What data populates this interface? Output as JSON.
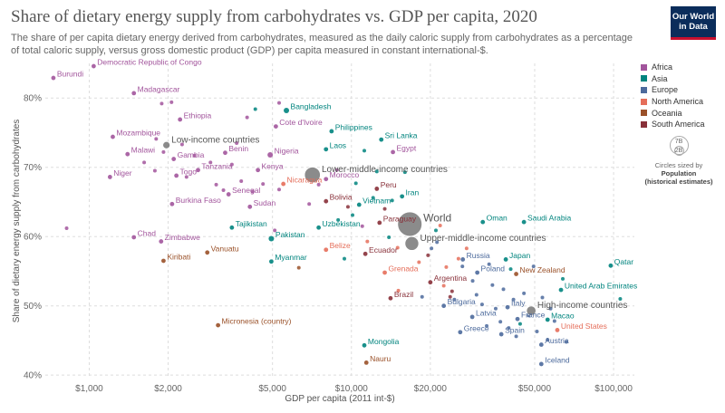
{
  "header": {
    "title": "Share of dietary energy supply from carbohydrates vs. GDP per capita, 2020",
    "subtitle": "The share of per capita dietary energy derived from carbohydrates, measured as the daily caloric supply from carbohydrates as a percentage of total caloric supply, versus gross domestic product (GDP) per capita measured in constant international-$.",
    "logo_line1": "Our World",
    "logo_line2": "in Data"
  },
  "legend": {
    "items": [
      {
        "label": "Africa",
        "color": "#a2559c"
      },
      {
        "label": "Asia",
        "color": "#00847e"
      },
      {
        "label": "Europe",
        "color": "#4c6a9c"
      },
      {
        "label": "North America",
        "color": "#e56e5a"
      },
      {
        "label": "Oceania",
        "color": "#9a5129"
      },
      {
        "label": "South America",
        "color": "#883039"
      }
    ],
    "size_note_1": "Circles sized by",
    "size_note_2": "Population",
    "size_note_3": "(historical estimates)",
    "size_big": "7B",
    "size_small": "2B"
  },
  "chart_data": {
    "type": "scatter",
    "title": "Share of dietary energy supply from carbohydrates vs. GDP per capita, 2020",
    "xlabel": "GDP per capita (2011 int-$)",
    "ylabel": "Share of dietary energy supply from carbohydrates",
    "x_scale": "log",
    "xlim": [
      680,
      120000
    ],
    "ylim": [
      39.5,
      85
    ],
    "x_ticks": [
      1000,
      2000,
      5000,
      10000,
      20000,
      50000,
      100000
    ],
    "x_tick_labels": [
      "$1,000",
      "$2,000",
      "$5,000",
      "$10,000",
      "$20,000",
      "$50,000",
      "$100,000"
    ],
    "y_ticks": [
      40,
      50,
      60,
      70,
      80
    ],
    "y_tick_labels": [
      "40%",
      "50%",
      "60%",
      "70%",
      "80%"
    ],
    "grid": true,
    "legend_position": "right",
    "labeled_points": [
      {
        "label": "Burundi",
        "x": 730,
        "y": 82.9,
        "region": "Africa"
      },
      {
        "label": "Democratic Republic of Congo",
        "x": 1040,
        "y": 84.6,
        "region": "Africa"
      },
      {
        "label": "Madagascar",
        "x": 1480,
        "y": 80.7,
        "region": "Africa"
      },
      {
        "label": "Ethiopia",
        "x": 2220,
        "y": 76.9,
        "region": "Africa"
      },
      {
        "label": "Bangladesh",
        "x": 5650,
        "y": 78.2,
        "region": "Asia"
      },
      {
        "label": "Cote d'Ivoire",
        "x": 5150,
        "y": 75.9,
        "region": "Africa"
      },
      {
        "label": "Mozambique",
        "x": 1230,
        "y": 74.4,
        "region": "Africa"
      },
      {
        "label": "Philippines",
        "x": 8400,
        "y": 75.2,
        "region": "Asia"
      },
      {
        "label": "Sri Lanka",
        "x": 13000,
        "y": 74.0,
        "region": "Asia"
      },
      {
        "label": "Low-income countries",
        "x": 1970,
        "y": 73.2,
        "region": "Aggregate",
        "population_b": 0.7
      },
      {
        "label": "Malawi",
        "x": 1400,
        "y": 71.9,
        "region": "Africa"
      },
      {
        "label": "Benin",
        "x": 3300,
        "y": 72.1,
        "region": "Africa"
      },
      {
        "label": "Nigeria",
        "x": 4900,
        "y": 71.8,
        "region": "Africa"
      },
      {
        "label": "Laos",
        "x": 8000,
        "y": 72.6,
        "region": "Asia"
      },
      {
        "label": "Egypt",
        "x": 14400,
        "y": 72.2,
        "region": "Africa"
      },
      {
        "label": "Gambia",
        "x": 2100,
        "y": 71.2,
        "region": "Africa"
      },
      {
        "label": "Tanzania",
        "x": 2600,
        "y": 69.6,
        "region": "Africa"
      },
      {
        "label": "Kenya",
        "x": 4400,
        "y": 69.6,
        "region": "Africa"
      },
      {
        "label": "Lower-middle-income countries",
        "x": 7100,
        "y": 68.9,
        "region": "Aggregate",
        "population_b": 3.3
      },
      {
        "label": "Niger",
        "x": 1200,
        "y": 68.6,
        "region": "Africa"
      },
      {
        "label": "Togo",
        "x": 2150,
        "y": 68.8,
        "region": "Africa"
      },
      {
        "label": "Nicaragua",
        "x": 5500,
        "y": 67.6,
        "region": "North America"
      },
      {
        "label": "Morocco",
        "x": 8000,
        "y": 68.3,
        "region": "Africa"
      },
      {
        "label": "Peru",
        "x": 12500,
        "y": 66.9,
        "region": "South America"
      },
      {
        "label": "Senegal",
        "x": 3400,
        "y": 66.1,
        "region": "Africa"
      },
      {
        "label": "Iran",
        "x": 15600,
        "y": 65.8,
        "region": "Asia"
      },
      {
        "label": "Bolivia",
        "x": 8000,
        "y": 65.1,
        "region": "South America"
      },
      {
        "label": "Burkina Faso",
        "x": 2070,
        "y": 64.7,
        "region": "Africa"
      },
      {
        "label": "Sudan",
        "x": 4100,
        "y": 64.3,
        "region": "Africa"
      },
      {
        "label": "Vietnam",
        "x": 10700,
        "y": 64.6,
        "region": "Asia"
      },
      {
        "label": "World",
        "x": 16700,
        "y": 61.8,
        "region": "Aggregate",
        "population_b": 7.8
      },
      {
        "label": "Tajikistan",
        "x": 3500,
        "y": 61.3,
        "region": "Asia"
      },
      {
        "label": "Uzbekistan",
        "x": 7500,
        "y": 61.3,
        "region": "Asia"
      },
      {
        "label": "Paraguay",
        "x": 12800,
        "y": 62.0,
        "region": "South America"
      },
      {
        "label": "Oman",
        "x": 31700,
        "y": 62.1,
        "region": "Asia"
      },
      {
        "label": "Saudi Arabia",
        "x": 45500,
        "y": 62.1,
        "region": "Asia"
      },
      {
        "label": "Chad",
        "x": 1480,
        "y": 59.9,
        "region": "Africa"
      },
      {
        "label": "Pakistan",
        "x": 4950,
        "y": 59.7,
        "region": "Asia"
      },
      {
        "label": "Upper-middle-income countries",
        "x": 17000,
        "y": 59.0,
        "region": "Aggregate",
        "population_b": 2.5
      },
      {
        "label": "Zimbabwe",
        "x": 1880,
        "y": 59.3,
        "region": "Africa"
      },
      {
        "label": "Vanuatu",
        "x": 2820,
        "y": 57.7,
        "region": "Oceania"
      },
      {
        "label": "Belize",
        "x": 8000,
        "y": 58.1,
        "region": "North America"
      },
      {
        "label": "Ecuador",
        "x": 11300,
        "y": 57.5,
        "region": "South America"
      },
      {
        "label": "Kiribati",
        "x": 1920,
        "y": 56.5,
        "region": "Oceania"
      },
      {
        "label": "Myanmar",
        "x": 4950,
        "y": 56.4,
        "region": "Asia"
      },
      {
        "label": "Russia",
        "x": 26600,
        "y": 56.7,
        "region": "Europe"
      },
      {
        "label": "Japan",
        "x": 38800,
        "y": 56.7,
        "region": "Asia"
      },
      {
        "label": "Qatar",
        "x": 97500,
        "y": 55.8,
        "region": "Asia"
      },
      {
        "label": "Poland",
        "x": 30200,
        "y": 54.8,
        "region": "Europe"
      },
      {
        "label": "New Zealand",
        "x": 42500,
        "y": 54.6,
        "region": "Oceania"
      },
      {
        "label": "Grenada",
        "x": 13400,
        "y": 54.8,
        "region": "North America"
      },
      {
        "label": "Argentina",
        "x": 20000,
        "y": 53.4,
        "region": "South America"
      },
      {
        "label": "United Arab Emirates",
        "x": 63000,
        "y": 52.3,
        "region": "Asia"
      },
      {
        "label": "Brazil",
        "x": 14100,
        "y": 51.1,
        "region": "South America"
      },
      {
        "label": "Bulgaria",
        "x": 22500,
        "y": 50.0,
        "region": "Europe"
      },
      {
        "label": "High-income countries",
        "x": 48500,
        "y": 49.3,
        "region": "Aggregate",
        "population_b": 1.2
      },
      {
        "label": "Italy",
        "x": 39400,
        "y": 49.8,
        "region": "Europe"
      },
      {
        "label": "Latvia",
        "x": 28900,
        "y": 48.4,
        "region": "Europe"
      },
      {
        "label": "France",
        "x": 43000,
        "y": 48.1,
        "region": "Europe"
      },
      {
        "label": "Macao",
        "x": 56000,
        "y": 48.0,
        "region": "Asia"
      },
      {
        "label": "Micronesia (country)",
        "x": 3100,
        "y": 47.2,
        "region": "Oceania"
      },
      {
        "label": "United States",
        "x": 61000,
        "y": 46.5,
        "region": "North America"
      },
      {
        "label": "Greece",
        "x": 26000,
        "y": 46.2,
        "region": "Europe"
      },
      {
        "label": "Spain",
        "x": 37300,
        "y": 45.9,
        "region": "Europe"
      },
      {
        "label": "Mongolia",
        "x": 11200,
        "y": 44.3,
        "region": "Asia"
      },
      {
        "label": "Austria",
        "x": 53000,
        "y": 44.4,
        "region": "Europe"
      },
      {
        "label": "Nauru",
        "x": 11400,
        "y": 41.8,
        "region": "Oceania"
      },
      {
        "label": "Iceland",
        "x": 53000,
        "y": 41.6,
        "region": "Europe"
      }
    ],
    "unlabeled_points": [
      {
        "x": 820,
        "y": 61.2,
        "region": "Africa"
      },
      {
        "x": 1620,
        "y": 70.7,
        "region": "Africa"
      },
      {
        "x": 1780,
        "y": 69.5,
        "region": "Africa"
      },
      {
        "x": 1800,
        "y": 74.1,
        "region": "Africa"
      },
      {
        "x": 1890,
        "y": 79.2,
        "region": "Africa"
      },
      {
        "x": 2060,
        "y": 79.4,
        "region": "Africa"
      },
      {
        "x": 1920,
        "y": 72.2,
        "region": "Africa"
      },
      {
        "x": 2260,
        "y": 73.3,
        "region": "Africa"
      },
      {
        "x": 2350,
        "y": 68.6,
        "region": "Africa"
      },
      {
        "x": 2520,
        "y": 71.7,
        "region": "Africa"
      },
      {
        "x": 2900,
        "y": 70.7,
        "region": "Africa"
      },
      {
        "x": 3050,
        "y": 67.5,
        "region": "Africa"
      },
      {
        "x": 3250,
        "y": 66.7,
        "region": "Africa"
      },
      {
        "x": 3500,
        "y": 70.4,
        "region": "Africa"
      },
      {
        "x": 3650,
        "y": 73.5,
        "region": "Africa"
      },
      {
        "x": 4000,
        "y": 77.2,
        "region": "Africa"
      },
      {
        "x": 4300,
        "y": 78.4,
        "region": "Asia"
      },
      {
        "x": 3800,
        "y": 68.0,
        "region": "Africa"
      },
      {
        "x": 4200,
        "y": 66.5,
        "region": "Africa"
      },
      {
        "x": 4600,
        "y": 67.6,
        "region": "Africa"
      },
      {
        "x": 5300,
        "y": 79.3,
        "region": "Africa"
      },
      {
        "x": 5300,
        "y": 66.8,
        "region": "Africa"
      },
      {
        "x": 5100,
        "y": 60.9,
        "region": "Africa"
      },
      {
        "x": 6300,
        "y": 55.5,
        "region": "Oceania"
      },
      {
        "x": 6900,
        "y": 64.7,
        "region": "Africa"
      },
      {
        "x": 7500,
        "y": 67.5,
        "region": "Africa"
      },
      {
        "x": 8800,
        "y": 69.6,
        "region": "Africa"
      },
      {
        "x": 8900,
        "y": 62.4,
        "region": "Asia"
      },
      {
        "x": 9400,
        "y": 56.8,
        "region": "Asia"
      },
      {
        "x": 9700,
        "y": 64.3,
        "region": "South America"
      },
      {
        "x": 10100,
        "y": 63.1,
        "region": "Asia"
      },
      {
        "x": 10400,
        "y": 67.7,
        "region": "Asia"
      },
      {
        "x": 11000,
        "y": 61.5,
        "region": "Africa"
      },
      {
        "x": 11200,
        "y": 72.4,
        "region": "Asia"
      },
      {
        "x": 11500,
        "y": 59.3,
        "region": "North America"
      },
      {
        "x": 12100,
        "y": 65.6,
        "region": "Asia"
      },
      {
        "x": 12500,
        "y": 69.4,
        "region": "Asia"
      },
      {
        "x": 13400,
        "y": 64.0,
        "region": "South America"
      },
      {
        "x": 13900,
        "y": 59.9,
        "region": "Asia"
      },
      {
        "x": 14300,
        "y": 65.2,
        "region": "Asia"
      },
      {
        "x": 15000,
        "y": 58.4,
        "region": "North America"
      },
      {
        "x": 15100,
        "y": 52.2,
        "region": "North America"
      },
      {
        "x": 16000,
        "y": 69.3,
        "region": "Asia"
      },
      {
        "x": 18100,
        "y": 56.3,
        "region": "North America"
      },
      {
        "x": 18600,
        "y": 51.3,
        "region": "Europe"
      },
      {
        "x": 19600,
        "y": 57.3,
        "region": "South America"
      },
      {
        "x": 20200,
        "y": 58.3,
        "region": "Europe"
      },
      {
        "x": 21000,
        "y": 60.9,
        "region": "Asia"
      },
      {
        "x": 21200,
        "y": 59.2,
        "region": "Europe"
      },
      {
        "x": 21800,
        "y": 61.6,
        "region": "North America"
      },
      {
        "x": 22500,
        "y": 52.9,
        "region": "North America"
      },
      {
        "x": 23000,
        "y": 55.6,
        "region": "North America"
      },
      {
        "x": 23800,
        "y": 51.3,
        "region": "South America"
      },
      {
        "x": 24200,
        "y": 52.1,
        "region": "South America"
      },
      {
        "x": 24700,
        "y": 50.9,
        "region": "Europe"
      },
      {
        "x": 25600,
        "y": 56.8,
        "region": "North America"
      },
      {
        "x": 26500,
        "y": 55.7,
        "region": "Europe"
      },
      {
        "x": 27500,
        "y": 58.3,
        "region": "North America"
      },
      {
        "x": 29000,
        "y": 53.6,
        "region": "Europe"
      },
      {
        "x": 30000,
        "y": 51.6,
        "region": "Europe"
      },
      {
        "x": 31500,
        "y": 50.2,
        "region": "Europe"
      },
      {
        "x": 32800,
        "y": 47.1,
        "region": "Europe"
      },
      {
        "x": 33500,
        "y": 56.0,
        "region": "Europe"
      },
      {
        "x": 34500,
        "y": 53.0,
        "region": "Europe"
      },
      {
        "x": 35500,
        "y": 49.6,
        "region": "Europe"
      },
      {
        "x": 37000,
        "y": 47.7,
        "region": "Europe"
      },
      {
        "x": 38000,
        "y": 52.4,
        "region": "Europe"
      },
      {
        "x": 39800,
        "y": 46.8,
        "region": "Europe"
      },
      {
        "x": 40500,
        "y": 55.3,
        "region": "Asia"
      },
      {
        "x": 41500,
        "y": 50.9,
        "region": "Europe"
      },
      {
        "x": 42500,
        "y": 45.6,
        "region": "Europe"
      },
      {
        "x": 44000,
        "y": 47.4,
        "region": "Asia"
      },
      {
        "x": 45500,
        "y": 51.8,
        "region": "Europe"
      },
      {
        "x": 47500,
        "y": 48.6,
        "region": "Europe"
      },
      {
        "x": 49500,
        "y": 55.7,
        "region": "Europe"
      },
      {
        "x": 51000,
        "y": 46.3,
        "region": "Europe"
      },
      {
        "x": 53500,
        "y": 51.2,
        "region": "Europe"
      },
      {
        "x": 56000,
        "y": 45.1,
        "region": "Europe"
      },
      {
        "x": 57500,
        "y": 49.6,
        "region": "Europe"
      },
      {
        "x": 59500,
        "y": 47.8,
        "region": "Europe"
      },
      {
        "x": 64000,
        "y": 53.9,
        "region": "Asia"
      },
      {
        "x": 66000,
        "y": 44.8,
        "region": "Europe"
      },
      {
        "x": 106000,
        "y": 51.0,
        "region": "Asia"
      }
    ]
  }
}
